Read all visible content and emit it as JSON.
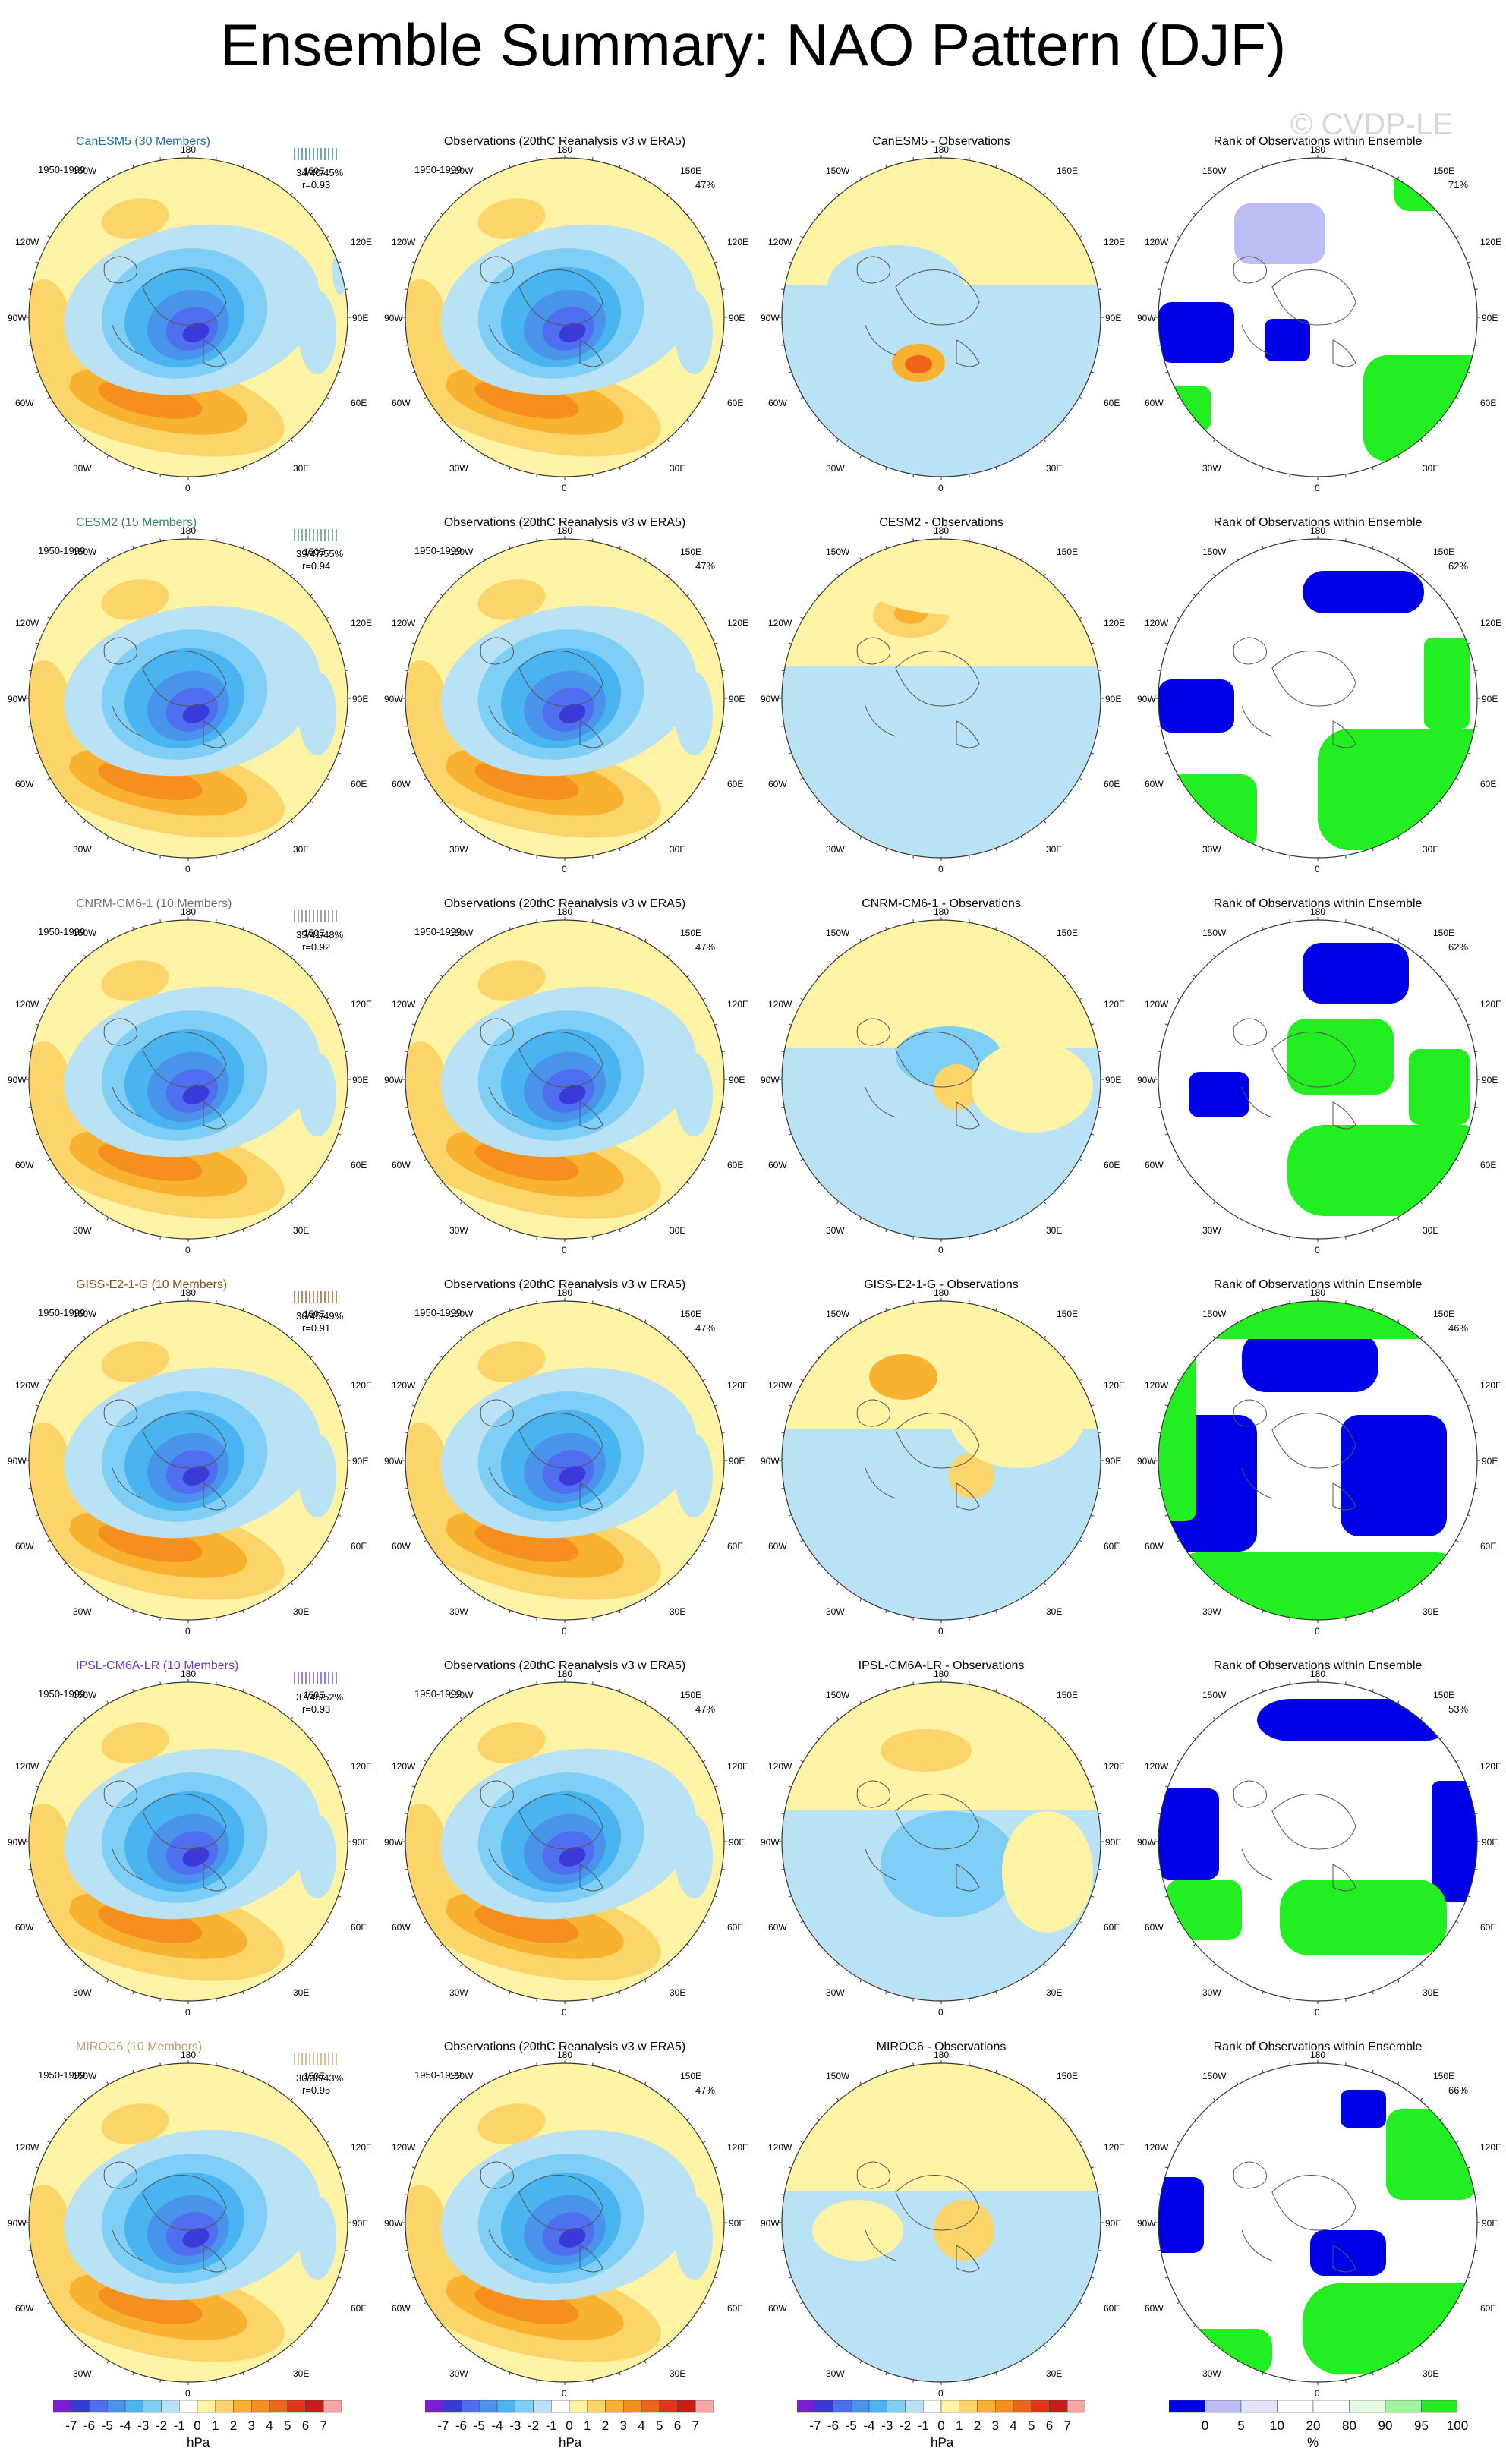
{
  "title": "Ensemble Summary: NAO Pattern (DJF)",
  "watermark": "© CVDP-LE",
  "period": "1950-1999",
  "lon_labels": {
    "n180": "180",
    "n150w": "150W",
    "n150e": "150E",
    "n120w": "120W",
    "n120e": "120E",
    "n90w": "90W",
    "n90e": "90E",
    "n60w": "60W",
    "n60e": "60E",
    "n30w": "30W",
    "n30e": "30E",
    "n0": "0"
  },
  "colors": {
    "neg7": "#7a1fd6",
    "neg6": "#3a3ad8",
    "neg5": "#4f6ef0",
    "neg4": "#4a93ea",
    "neg3": "#49b4f0",
    "neg2": "#7ecef5",
    "neg1": "#b9e2f4",
    "pos1": "#fff3a6",
    "pos2": "#fbd46a",
    "pos3": "#f8b22f",
    "pos4": "#f5901f",
    "pos5": "#ef6418",
    "pos6": "#e3331a",
    "pos7": "#ca1a1a",
    "pos8": "#f6a5a5",
    "rank_low": "#0000e6",
    "rank_mid": "#bdbdf5",
    "rank_lo3": "#e3e3fa",
    "rank_hi3": "#e3fbe3",
    "rank_mid2": "#9ef59e",
    "rank_high": "#22ee22",
    "map_land": "#555555",
    "ocean_white": "#ffffff"
  },
  "rows": [
    {
      "model": "CanESM5 (30 Members)",
      "model_color": "#1f6fa8",
      "stats": "34/40/45%",
      "r": "r=0.93",
      "obs_pct": "47%",
      "rank_pct": "71%",
      "diff_title": "CanESM5 - Observations"
    },
    {
      "model": "CESM2 (15 Members)",
      "model_color": "#3d8a5c",
      "stats": "39/47/55%",
      "r": "r=0.94",
      "obs_pct": "47%",
      "rank_pct": "62%",
      "diff_title": "CESM2 - Observations"
    },
    {
      "model": "CNRM-CM6-1 (10 Members)",
      "model_color": "#707070",
      "stats": "35/41/48%",
      "r": "r=0.92",
      "obs_pct": "47%",
      "rank_pct": "62%",
      "diff_title": "CNRM-CM6-1 - Observations"
    },
    {
      "model": "GISS-E2-1-G (10 Members)",
      "model_color": "#8b4a1a",
      "stats": "36/45/49%",
      "r": "r=0.91",
      "obs_pct": "47%",
      "rank_pct": "46%",
      "diff_title": "GISS-E2-1-G - Observations"
    },
    {
      "model": "IPSL-CM6A-LR (10 Members)",
      "model_color": "#6a3acb",
      "stats": "37/45/52%",
      "r": "r=0.93",
      "obs_pct": "47%",
      "rank_pct": "53%",
      "diff_title": "IPSL-CM6A-LR - Observations"
    },
    {
      "model": "MIROC6 (10 Members)",
      "model_color": "#c29a6a",
      "stats": "30/38/43%",
      "r": "r=0.95",
      "obs_pct": "47%",
      "rank_pct": "66%",
      "diff_title": "MIROC6 - Observations"
    }
  ],
  "obs_title": "Observations (20thC Reanalysis v3 w ERA5)",
  "rank_title": "Rank of Observations within Ensemble",
  "colorbar_hpa": {
    "labels": [
      "-7",
      "-6",
      "-5",
      "-4",
      "-3",
      "-2",
      "-1",
      "0",
      "1",
      "2",
      "3",
      "4",
      "5",
      "6",
      "7"
    ],
    "unit": "hPa"
  },
  "colorbar_rank": {
    "labels": [
      "0",
      "5",
      "10",
      "20",
      "80",
      "90",
      "95",
      "100"
    ],
    "unit": "%"
  }
}
